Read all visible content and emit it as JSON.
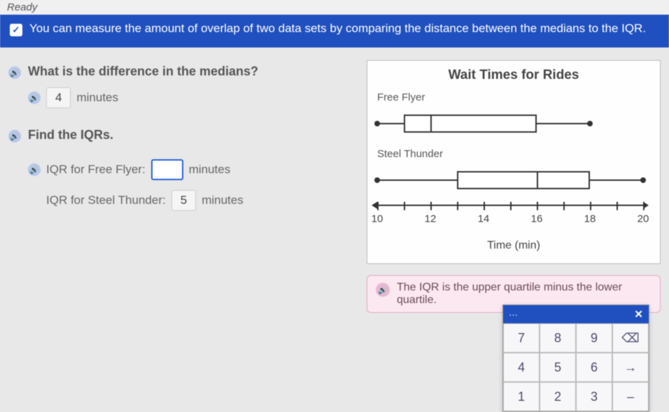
{
  "top_label": "Ready",
  "banner": {
    "text": "You can measure the amount of overlap of two data sets by comparing the distance between the medians to the IQR."
  },
  "q1": {
    "prompt": "What is the difference in the medians?",
    "value": "4",
    "unit": "minutes"
  },
  "q2": {
    "prompt": "Find the IQRs.",
    "rows": {
      "free_flyer": {
        "label": "IQR for Free Flyer:",
        "value": "",
        "unit": "minutes"
      },
      "steel_thunder": {
        "label": "IQR for Steel Thunder:",
        "value": "5",
        "unit": "minutes"
      }
    }
  },
  "chart": {
    "title": "Wait Times for Rides",
    "x_axis_title": "Time (min)",
    "x_min": 10,
    "x_max": 20,
    "tick_step": 2,
    "ticks": [
      10,
      12,
      14,
      16,
      18,
      20
    ],
    "series": [
      {
        "name": "Free Flyer",
        "min": 10,
        "q1": 11,
        "median": 12,
        "q3": 16,
        "max": 18
      },
      {
        "name": "Steel Thunder",
        "min": 10,
        "q1": 13,
        "median": 16,
        "q3": 18,
        "max": 20
      }
    ],
    "colors": {
      "ink": "#333333",
      "panel_bg": "#fefefe",
      "panel_border": "#bbbbbb"
    }
  },
  "hint": {
    "text": "The IQR is the upper quartile minus the lower quartile."
  },
  "keypad": {
    "title": "···",
    "close": "✕",
    "keys": [
      "7",
      "8",
      "9",
      "⌫",
      "4",
      "5",
      "6",
      "→",
      "1",
      "2",
      "3",
      "–"
    ]
  }
}
